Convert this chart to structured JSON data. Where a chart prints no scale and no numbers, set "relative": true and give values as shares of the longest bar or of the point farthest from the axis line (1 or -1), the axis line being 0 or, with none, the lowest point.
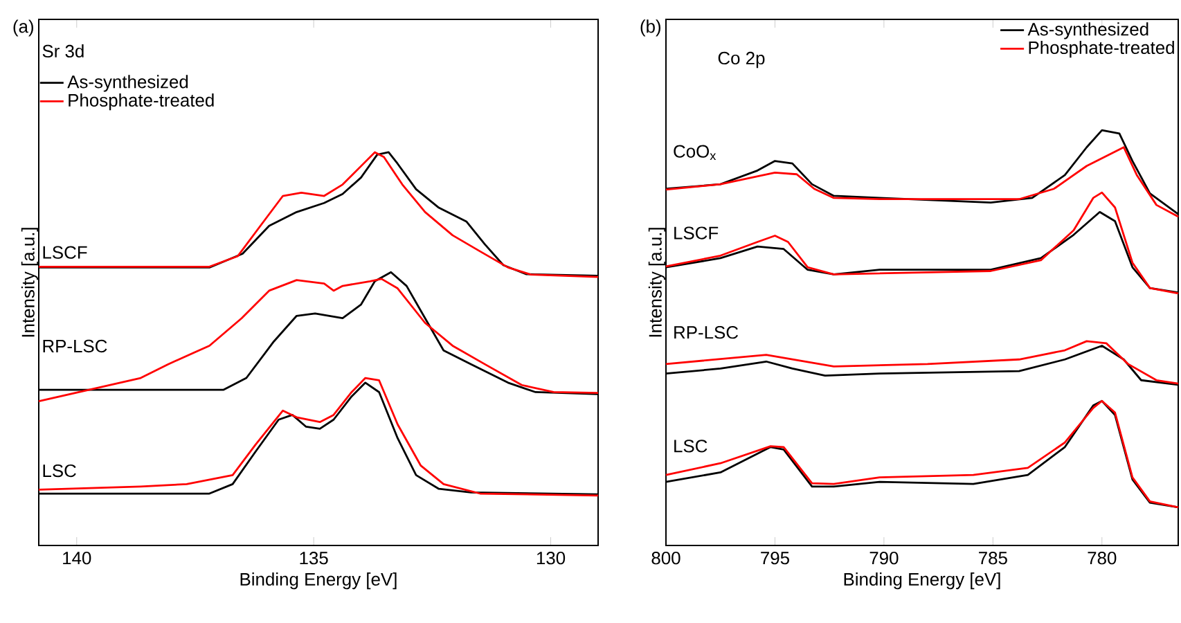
{
  "chart_data": [
    {
      "type": "line",
      "xlabel": "Binding Energy [eV]",
      "ylabel": "Intensity [a.u.]",
      "relative": true,
      "xlim": [
        140.8,
        129
      ],
      "xticks": [
        140,
        135,
        130
      ],
      "legend": "top left",
      "annotations": [
        "(a)",
        "Sr 3d",
        "LSCF",
        "RP-LSC",
        "LSC"
      ],
      "series": [
        {
          "name": "As-synthesized",
          "color": "#000000",
          "x": [
            140.8,
            137.2,
            136.5,
            135.94,
            135.36,
            134.78,
            134.39,
            134.0,
            133.66,
            133.42,
            133.23,
            132.84,
            132.36,
            131.78,
            131.39,
            131.0,
            130.52,
            129.0
          ],
          "values": [
            0.707,
            0.707,
            0.742,
            0.813,
            0.848,
            0.871,
            0.894,
            0.936,
            0.994,
            1.0,
            0.971,
            0.906,
            0.859,
            0.824,
            0.766,
            0.713,
            0.69,
            0.686
          ]
        },
        {
          "name": "Phosphate-treated",
          "color": "#ff0000",
          "x": [
            140.8,
            137.2,
            136.6,
            136.13,
            135.65,
            135.26,
            134.78,
            134.39,
            134.0,
            133.71,
            133.52,
            133.13,
            132.65,
            132.07,
            131.49,
            130.9,
            130.42,
            129.0
          ],
          "values": [
            0.709,
            0.709,
            0.736,
            0.812,
            0.889,
            0.897,
            0.889,
            0.918,
            0.965,
            1.0,
            0.988,
            0.918,
            0.848,
            0.789,
            0.748,
            0.707,
            0.689,
            0.683
          ]
        },
        {
          "color": "#000000",
          "x": [
            140.8,
            136.9,
            136.42,
            135.84,
            135.36,
            134.97,
            134.39,
            134.0,
            133.71,
            133.37,
            133.04,
            132.65,
            132.26,
            131.68,
            130.9,
            130.32,
            129.0
          ],
          "values": [
            0.396,
            0.396,
            0.426,
            0.519,
            0.584,
            0.59,
            0.578,
            0.613,
            0.672,
            0.695,
            0.66,
            0.578,
            0.496,
            0.461,
            0.414,
            0.39,
            0.385
          ]
        },
        {
          "color": "#ff0000",
          "x": [
            140.8,
            138.65,
            138.07,
            137.2,
            136.52,
            135.94,
            135.36,
            134.78,
            134.58,
            134.39,
            133.81,
            133.57,
            133.23,
            132.65,
            132.07,
            131.39,
            130.61,
            129.94,
            129.0
          ],
          "values": [
            0.367,
            0.426,
            0.461,
            0.508,
            0.578,
            0.648,
            0.675,
            0.666,
            0.648,
            0.66,
            0.672,
            0.678,
            0.654,
            0.566,
            0.508,
            0.461,
            0.408,
            0.39,
            0.388
          ]
        },
        {
          "color": "#000000",
          "x": [
            140.8,
            137.2,
            136.71,
            136.23,
            135.74,
            135.45,
            135.16,
            134.87,
            134.58,
            134.2,
            133.91,
            133.62,
            133.23,
            132.84,
            132.36,
            131.68,
            129.0
          ],
          "values": [
            0.132,
            0.132,
            0.156,
            0.238,
            0.32,
            0.332,
            0.302,
            0.297,
            0.32,
            0.379,
            0.414,
            0.39,
            0.273,
            0.179,
            0.144,
            0.135,
            0.13
          ]
        },
        {
          "color": "#ff0000",
          "x": [
            140.8,
            138.65,
            137.68,
            136.71,
            136.23,
            135.65,
            135.36,
            134.87,
            134.58,
            134.2,
            133.91,
            133.62,
            133.23,
            132.74,
            132.26,
            131.49,
            129.0
          ],
          "values": [
            0.142,
            0.15,
            0.156,
            0.179,
            0.256,
            0.343,
            0.326,
            0.314,
            0.332,
            0.39,
            0.426,
            0.42,
            0.308,
            0.203,
            0.156,
            0.132,
            0.127
          ]
        }
      ]
    },
    {
      "type": "line",
      "xlabel": "Binding Energy [eV]",
      "ylabel": "Intensity [a.u.]",
      "relative": true,
      "xlim": [
        800,
        776.5
      ],
      "xticks": [
        800,
        795,
        790,
        785,
        780
      ],
      "legend": "top right",
      "annotations": [
        "(b)",
        "Co 2p",
        "CoO$_{x}$",
        "LSCF",
        "RP-LSC",
        "LSC"
      ],
      "series": [
        {
          "name": "As-synthesized",
          "color": "#000000",
          "x": [
            800,
            797.5,
            795.8,
            795,
            794.2,
            793.3,
            792.3,
            790.2,
            785.1,
            783.2,
            781.7,
            780.7,
            780,
            779.2,
            778.6,
            777.8,
            776.5
          ],
          "values": [
            0.859,
            0.87,
            0.903,
            0.926,
            0.92,
            0.87,
            0.842,
            0.837,
            0.826,
            0.837,
            0.892,
            0.959,
            1.0,
            0.992,
            0.926,
            0.848,
            0.798
          ]
        },
        {
          "name": "Phosphate-treated",
          "color": "#ff0000",
          "x": [
            800,
            797.5,
            795,
            794,
            793.2,
            792.3,
            790.2,
            783.8,
            782.2,
            780.7,
            779,
            778.4,
            777.5,
            776.5
          ],
          "values": [
            0.857,
            0.87,
            0.898,
            0.894,
            0.859,
            0.837,
            0.834,
            0.834,
            0.859,
            0.914,
            0.959,
            0.892,
            0.82,
            0.792
          ]
        },
        {
          "color": "#000000",
          "x": [
            800,
            797.5,
            795.8,
            794.6,
            793.5,
            792.3,
            790.2,
            785.1,
            782.8,
            781.3,
            780.1,
            779.4,
            778.6,
            777.8,
            776.5
          ],
          "values": [
            0.67,
            0.692,
            0.72,
            0.714,
            0.664,
            0.653,
            0.664,
            0.664,
            0.692,
            0.748,
            0.803,
            0.781,
            0.67,
            0.62,
            0.609
          ]
        },
        {
          "color": "#ff0000",
          "x": [
            800,
            797.5,
            795.8,
            795,
            794.4,
            793.5,
            792.3,
            785.1,
            782.8,
            781.3,
            780.4,
            780,
            779.4,
            778.6,
            777.8,
            776.5
          ],
          "values": [
            0.672,
            0.698,
            0.731,
            0.746,
            0.731,
            0.67,
            0.653,
            0.661,
            0.687,
            0.759,
            0.837,
            0.85,
            0.814,
            0.681,
            0.62,
            0.607
          ]
        },
        {
          "color": "#000000",
          "x": [
            800,
            797.5,
            795.4,
            794.2,
            792.7,
            790.2,
            783.8,
            781.7,
            780,
            779,
            778.2,
            776.5
          ],
          "values": [
            0.414,
            0.426,
            0.443,
            0.426,
            0.409,
            0.414,
            0.42,
            0.448,
            0.481,
            0.448,
            0.398,
            0.387
          ]
        },
        {
          "color": "#ff0000",
          "x": [
            800,
            795.4,
            792.3,
            788,
            783.8,
            781.7,
            780.7,
            779.8,
            778.8,
            777.5,
            776.5
          ],
          "values": [
            0.437,
            0.459,
            0.431,
            0.437,
            0.448,
            0.47,
            0.492,
            0.487,
            0.437,
            0.398,
            0.39
          ]
        },
        {
          "color": "#000000",
          "x": [
            800,
            797.5,
            795.2,
            794.6,
            793.3,
            792.3,
            790.2,
            785.9,
            783.4,
            781.7,
            780.4,
            780,
            779.4,
            778.6,
            777.8,
            776.5
          ],
          "values": [
            0.153,
            0.176,
            0.237,
            0.231,
            0.142,
            0.142,
            0.153,
            0.148,
            0.17,
            0.237,
            0.337,
            0.348,
            0.314,
            0.159,
            0.103,
            0.092
          ]
        },
        {
          "color": "#ff0000",
          "x": [
            800,
            797.5,
            795.2,
            794.6,
            793.3,
            792.3,
            790.2,
            785.9,
            783.4,
            781.7,
            780.4,
            780,
            779.4,
            778.6,
            777.8,
            776.5
          ],
          "values": [
            0.17,
            0.198,
            0.239,
            0.237,
            0.15,
            0.148,
            0.164,
            0.17,
            0.187,
            0.248,
            0.331,
            0.348,
            0.32,
            0.164,
            0.106,
            0.092
          ]
        }
      ]
    }
  ]
}
